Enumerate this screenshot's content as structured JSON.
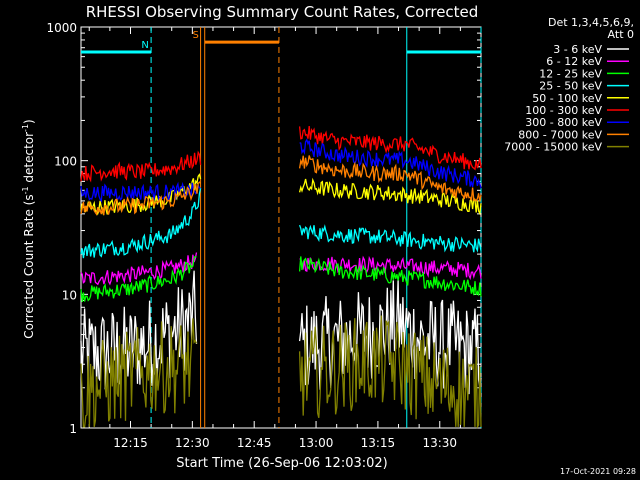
{
  "chart_data": {
    "type": "line",
    "title": "RHESSI Observing Summary Count Rates, Corrected",
    "xlabel": "Start Time (26-Sep-06 12:03:02)",
    "ylabel_main": "Corrected Count Rate (s",
    "ylabel_sup1": "-1",
    "ylabel_mid": " detector",
    "ylabel_sup2": "-1",
    "ylabel_end": ")",
    "y_scale": "log",
    "ylim": [
      1,
      1000
    ],
    "xlim": [
      "12:03",
      "13:40"
    ],
    "x_ticks": [
      "12:15",
      "12:30",
      "12:45",
      "13:00",
      "13:15",
      "13:30"
    ],
    "y_ticks": [
      "1",
      "10",
      "100",
      "1000"
    ],
    "detectors": "Det 1,3,4,5,6,9,",
    "attenuator": "Att 0",
    "footer_date": "17-Oct-2021 09:28",
    "flags": [
      {
        "label": "N",
        "color": "#00ffff",
        "segments": [
          [
            "12:03",
            "12:20"
          ],
          [
            "13:22",
            "13:40"
          ]
        ],
        "level": 650
      },
      {
        "label": "S",
        "color": "#ff8000",
        "segments": [
          [
            "12:33",
            "12:51"
          ]
        ],
        "level": 770
      }
    ],
    "markers": [
      {
        "time": "12:20",
        "color": "#00ffff",
        "style": "dashed"
      },
      {
        "time": "12:32",
        "color": "#ff8000",
        "style": "solid"
      },
      {
        "time": "12:33",
        "color": "#ff8000",
        "style": "solid"
      },
      {
        "time": "12:51",
        "color": "#ff8000",
        "style": "dashed"
      },
      {
        "time": "13:22",
        "color": "#00ffff",
        "style": "solid"
      },
      {
        "time": "13:40",
        "color": "#00ffff",
        "style": "dashed"
      }
    ],
    "series": [
      {
        "name": "3 - 6 keV",
        "color": "#ffffff",
        "seg1": [
          [
            "12:03",
            3.5
          ],
          [
            "12:15",
            3.8
          ],
          [
            "12:27",
            5.5
          ],
          [
            "12:31",
            7
          ]
        ],
        "seg2": [
          [
            "12:56",
            4.0
          ],
          [
            "13:05",
            4.5
          ],
          [
            "13:12",
            5.0
          ],
          [
            "13:20",
            6.0
          ],
          [
            "13:26",
            4.5
          ],
          [
            "13:40",
            3.7
          ]
        ]
      },
      {
        "name": "6 - 12 keV",
        "color": "#ff00ff",
        "seg1": [
          [
            "12:03",
            13
          ],
          [
            "12:15",
            14
          ],
          [
            "12:25",
            15.5
          ],
          [
            "12:31",
            18
          ]
        ],
        "seg2": [
          [
            "12:56",
            17
          ],
          [
            "13:05",
            17
          ],
          [
            "13:15",
            16.5
          ],
          [
            "13:25",
            16
          ],
          [
            "13:40",
            15
          ]
        ]
      },
      {
        "name": "12 - 25 keV",
        "color": "#00ff00",
        "seg1": [
          [
            "12:03",
            10
          ],
          [
            "12:15",
            11
          ],
          [
            "12:25",
            13
          ],
          [
            "12:31",
            17
          ]
        ],
        "seg2": [
          [
            "12:56",
            17
          ],
          [
            "13:05",
            15
          ],
          [
            "13:15",
            14
          ],
          [
            "13:25",
            13
          ],
          [
            "13:40",
            11
          ]
        ]
      },
      {
        "name": "25 - 50 keV",
        "color": "#00ffff",
        "seg1": [
          [
            "12:03",
            21
          ],
          [
            "12:15",
            23
          ],
          [
            "12:25",
            28
          ],
          [
            "12:30",
            40
          ],
          [
            "12:32",
            55
          ]
        ],
        "seg2": [
          [
            "12:56",
            30
          ],
          [
            "13:05",
            28
          ],
          [
            "13:15",
            27
          ],
          [
            "13:25",
            25
          ],
          [
            "13:40",
            23
          ]
        ]
      },
      {
        "name": "50 - 100 keV",
        "color": "#ffff00",
        "seg1": [
          [
            "12:03",
            44
          ],
          [
            "12:15",
            46
          ],
          [
            "12:25",
            52
          ],
          [
            "12:32",
            72
          ]
        ],
        "seg2": [
          [
            "12:56",
            65
          ],
          [
            "13:05",
            60
          ],
          [
            "13:15",
            58
          ],
          [
            "13:25",
            54
          ],
          [
            "13:40",
            46
          ]
        ]
      },
      {
        "name": "100 - 300 keV",
        "color": "#ff0000",
        "seg1": [
          [
            "12:03",
            80
          ],
          [
            "12:10",
            84
          ],
          [
            "12:18",
            82
          ],
          [
            "12:25",
            88
          ],
          [
            "12:32",
            105
          ]
        ],
        "seg2": [
          [
            "12:56",
            165
          ],
          [
            "13:05",
            140
          ],
          [
            "13:15",
            135
          ],
          [
            "13:22",
            132
          ],
          [
            "13:30",
            110
          ],
          [
            "13:40",
            92
          ]
        ]
      },
      {
        "name": "300 - 800 keV",
        "color": "#0000ff",
        "seg1": [
          [
            "12:03",
            57
          ],
          [
            "12:15",
            58
          ],
          [
            "12:25",
            58
          ],
          [
            "12:32",
            60
          ]
        ],
        "seg2": [
          [
            "12:56",
            130
          ],
          [
            "13:05",
            110
          ],
          [
            "13:15",
            103
          ],
          [
            "13:22",
            100
          ],
          [
            "13:30",
            82
          ],
          [
            "13:40",
            70
          ]
        ]
      },
      {
        "name": "800 - 7000 keV",
        "color": "#ff8000",
        "seg1": [
          [
            "12:03",
            44
          ],
          [
            "12:15",
            46
          ],
          [
            "12:25",
            50
          ],
          [
            "12:32",
            62
          ]
        ],
        "seg2": [
          [
            "12:56",
            100
          ],
          [
            "13:05",
            85
          ],
          [
            "13:15",
            80
          ],
          [
            "13:22",
            80
          ],
          [
            "13:30",
            62
          ],
          [
            "13:40",
            55
          ]
        ]
      },
      {
        "name": "7000 - 15000 keV",
        "color": "#808000",
        "seg1": [
          [
            "12:03",
            1.8
          ],
          [
            "12:10",
            2.2
          ],
          [
            "12:15",
            2.5
          ],
          [
            "12:22",
            2.8
          ],
          [
            "12:31",
            3
          ]
        ],
        "seg2": [
          [
            "12:56",
            2.5
          ],
          [
            "13:05",
            2.8
          ],
          [
            "13:12",
            3.2
          ],
          [
            "13:20",
            3.0
          ],
          [
            "13:28",
            2.2
          ],
          [
            "13:40",
            1.8
          ]
        ]
      }
    ]
  }
}
